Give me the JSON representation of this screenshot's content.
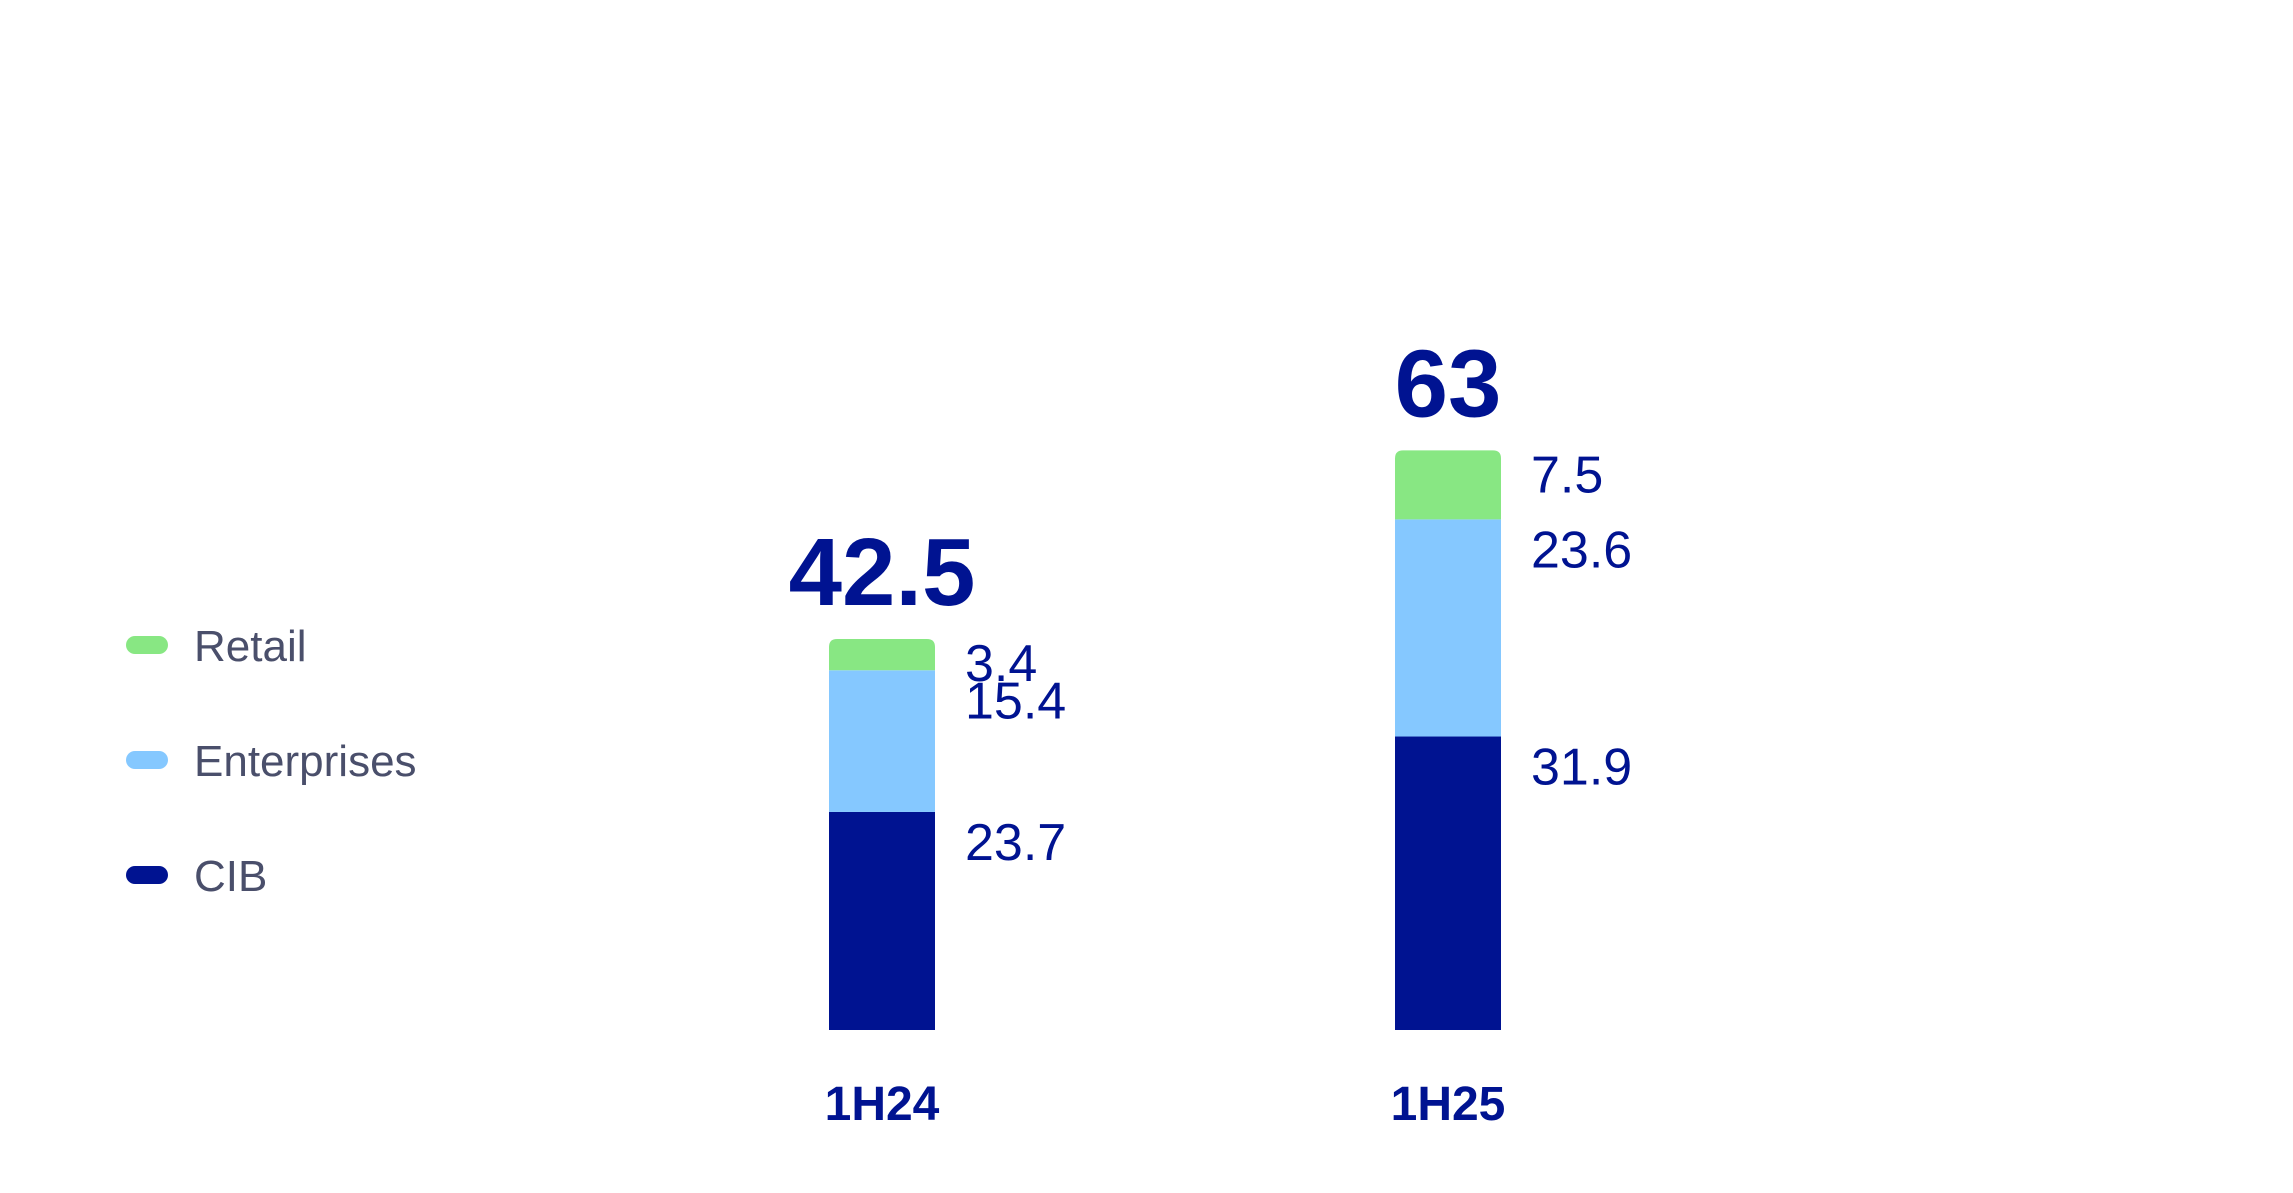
{
  "chart_data": {
    "type": "bar",
    "stacked": true,
    "categories": [
      "1H24",
      "1H25"
    ],
    "series": [
      {
        "name": "CIB",
        "values": [
          23.7,
          31.9
        ],
        "color": "#001391"
      },
      {
        "name": "Enterprises",
        "values": [
          15.4,
          23.6
        ],
        "color": "#85c8ff"
      },
      {
        "name": "Retail",
        "values": [
          3.4,
          7.5
        ],
        "color": "#88e783"
      }
    ],
    "totals": [
      "42.5",
      "63"
    ],
    "segment_labels": [
      [
        "23.7",
        "15.4",
        "3.4"
      ],
      [
        "31.9",
        "23.6",
        "7.5"
      ]
    ],
    "legend": {
      "placement": "left",
      "order": [
        "Retail",
        "Enterprises",
        "CIB"
      ]
    },
    "ylim": [
      0,
      63
    ],
    "grid": false,
    "xlabel": "",
    "ylabel": "",
    "title": ""
  },
  "colors": {
    "text_primary": "#001391",
    "legend_text": "#4a4f6b"
  }
}
